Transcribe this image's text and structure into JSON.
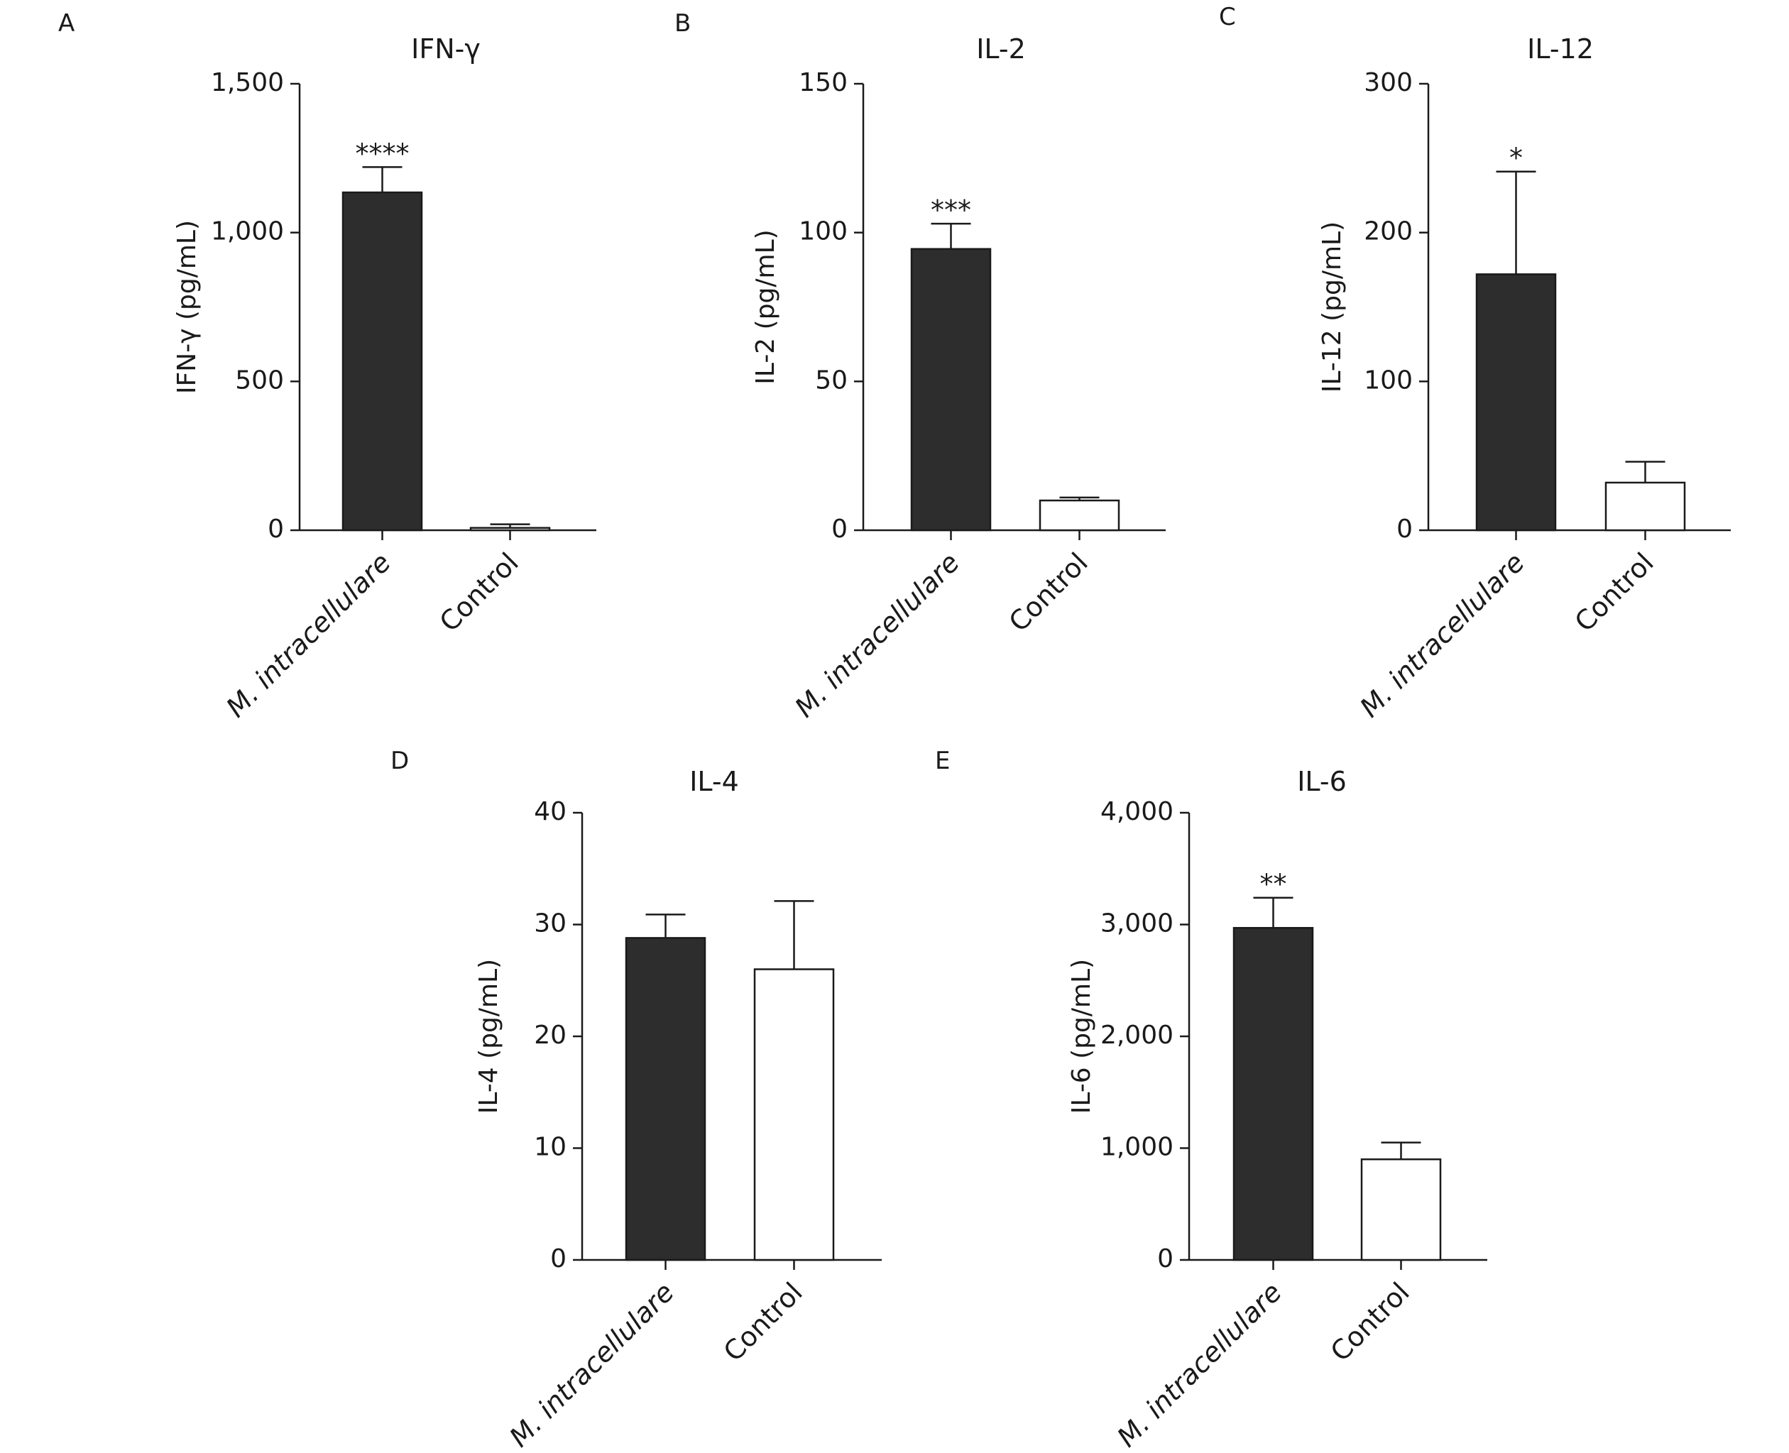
{
  "chart_data": [
    {
      "panel": "A",
      "type": "bar",
      "title": "IFN-γ",
      "ylabel": "IFN-γ (pg/mL)",
      "categories": [
        "M. intracellulare",
        "Control"
      ],
      "values": [
        1135,
        8
      ],
      "errors": [
        85,
        12
      ],
      "fills": [
        "#2d2d2d",
        "#ffffff"
      ],
      "significance": [
        "****",
        ""
      ],
      "ylim": [
        0,
        1500
      ],
      "yticks": [
        0,
        500,
        1000,
        1500
      ],
      "ytick_labels": [
        "0",
        "500",
        "1,000",
        "1,500"
      ]
    },
    {
      "panel": "B",
      "type": "bar",
      "title": "IL-2",
      "ylabel": "IL-2 (pg/mL)",
      "categories": [
        "M. intracellulare",
        "Control"
      ],
      "values": [
        94.5,
        10
      ],
      "errors": [
        8.5,
        1
      ],
      "fills": [
        "#2d2d2d",
        "#ffffff"
      ],
      "significance": [
        "***",
        ""
      ],
      "ylim": [
        0,
        150
      ],
      "yticks": [
        0,
        50,
        100,
        150
      ],
      "ytick_labels": [
        "0",
        "50",
        "100",
        "150"
      ]
    },
    {
      "panel": "C",
      "type": "bar",
      "title": "IL-12",
      "ylabel": "IL-12 (pg/mL)",
      "categories": [
        "M. intracellulare",
        "Control"
      ],
      "values": [
        172,
        32
      ],
      "errors": [
        69,
        14
      ],
      "fills": [
        "#2d2d2d",
        "#ffffff"
      ],
      "significance": [
        "*",
        ""
      ],
      "ylim": [
        0,
        300
      ],
      "yticks": [
        0,
        100,
        200,
        300
      ],
      "ytick_labels": [
        "0",
        "100",
        "200",
        "300"
      ]
    },
    {
      "panel": "D",
      "type": "bar",
      "title": "IL-4",
      "ylabel": "IL-4 (pg/mL)",
      "categories": [
        "M. intracellulare",
        "Control"
      ],
      "values": [
        28.8,
        26
      ],
      "errors": [
        2.1,
        6.1
      ],
      "fills": [
        "#2d2d2d",
        "#ffffff"
      ],
      "significance": [
        "",
        ""
      ],
      "ylim": [
        0,
        40
      ],
      "yticks": [
        0,
        10,
        20,
        30,
        40
      ],
      "ytick_labels": [
        "0",
        "10",
        "20",
        "30",
        "40"
      ]
    },
    {
      "panel": "E",
      "type": "bar",
      "title": "IL-6",
      "ylabel": "IL-6 (pg/mL)",
      "categories": [
        "M. intracellulare",
        "Control"
      ],
      "values": [
        2970,
        900
      ],
      "errors": [
        270,
        150
      ],
      "fills": [
        "#2d2d2d",
        "#ffffff"
      ],
      "significance": [
        "**",
        ""
      ],
      "ylim": [
        0,
        4000
      ],
      "yticks": [
        0,
        1000,
        2000,
        3000,
        4000
      ],
      "ytick_labels": [
        "0",
        "1,000",
        "2,000",
        "3,000",
        "4,000"
      ]
    }
  ],
  "colors": {
    "dark_bar": "#2d2d2d",
    "light_bar": "#ffffff",
    "axis": "#1a1a1a"
  }
}
